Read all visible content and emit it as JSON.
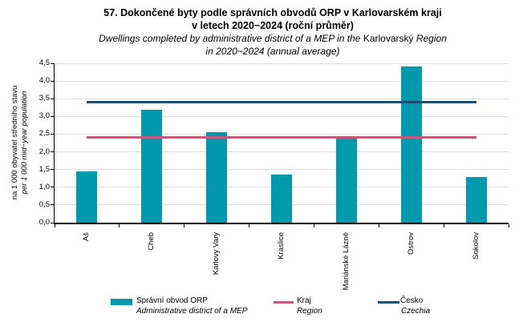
{
  "title": {
    "line1": "57. Dokončené byty podle správních obvodů ORP v Karlovarském kraji",
    "line2": "v letech 2020−2024 (roční průměr)",
    "subtitle": {
      "part1_italic": "Dwellings completed by administrative district of a MEP in the ",
      "part2_upright": "Karlovarský",
      "part3_italic": " Region",
      "line2_italic": "in 2020−2024 (annual average)"
    }
  },
  "y_axis": {
    "title_cs": "na 1 000 obyvatel středního stavu",
    "title_en": "per 1 000 mid−year population",
    "tick_labels": [
      "0,0",
      "0,5",
      "1,0",
      "1,5",
      "2,0",
      "2,5",
      "3,0",
      "3,5",
      "4,0",
      "4,5"
    ]
  },
  "legend": [
    {
      "swatch": "bar",
      "color": "#0099AD",
      "label_cs": "Správní obvod ORP",
      "label_en": "Administrative district of a MEP"
    },
    {
      "swatch": "line",
      "color": "#C4597F",
      "label_cs": "Kraj",
      "label_en": "Region"
    },
    {
      "swatch": "line",
      "color": "#1F4F6E",
      "label_cs": "Česko",
      "label_en": "Czechia"
    }
  ],
  "chart_data": {
    "type": "bar",
    "title": "57. Dokončené byty podle správních obvodů ORP v Karlovarském kraji v letech 2020−2024 (roční průměr)",
    "subtitle_en": "Dwellings completed by administrative district of a MEP in the Karlovarský Region in 2020−2024 (annual average)",
    "categories": [
      "Aš",
      "Cheb",
      "Karlovy Vary",
      "Kraslice",
      "Mariánské Lázně",
      "Ostrov",
      "Sokolov"
    ],
    "series": [
      {
        "name": "Správní obvod ORP / Administrative district of a MEP",
        "type": "bar",
        "color": "#0099AD",
        "values": [
          1.45,
          3.2,
          2.55,
          1.35,
          2.45,
          4.4,
          1.3
        ]
      },
      {
        "name": "Kraj / Region",
        "type": "reference-line",
        "color": "#C4597F",
        "value": 2.4
      },
      {
        "name": "Česko / Czechia",
        "type": "reference-line",
        "color": "#1F4F6E",
        "value": 3.4
      }
    ],
    "ylabel": "na 1 000 obyvatel středního stavu / per 1 000 mid−year population",
    "xlabel": "",
    "ylim": [
      0,
      4.5
    ],
    "ytick_step": 0.5,
    "grid": "horizontal",
    "legend_position": "bottom"
  }
}
